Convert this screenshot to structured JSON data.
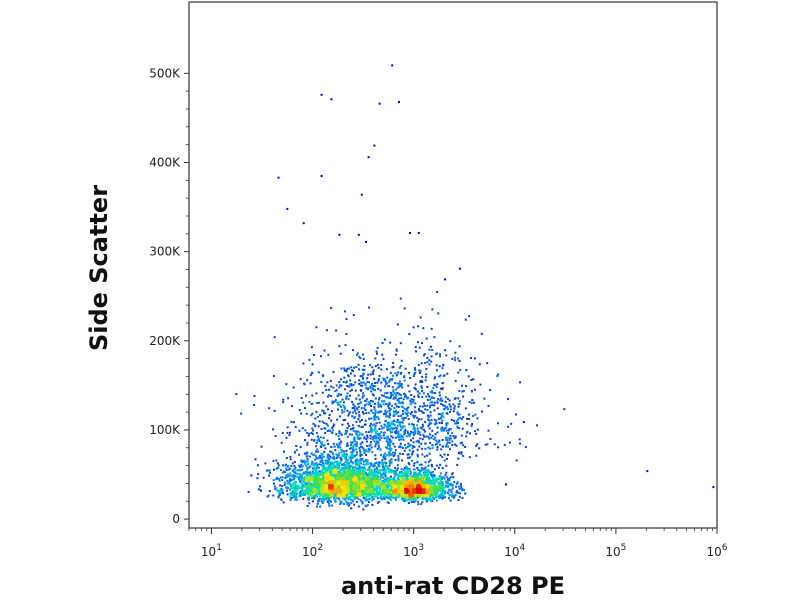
{
  "chart_data": {
    "type": "scatter",
    "title": "",
    "xlabel": "anti-rat CD28 PE",
    "ylabel": "Side Scatter",
    "x_scale": "log",
    "xlim": [
      6,
      1000000
    ],
    "ylim": [
      -10000,
      580000
    ],
    "x_ticks": [
      {
        "value": 10,
        "base": "10",
        "exp": "1"
      },
      {
        "value": 100,
        "base": "10",
        "exp": "2"
      },
      {
        "value": 1000,
        "base": "10",
        "exp": "3"
      },
      {
        "value": 10000,
        "base": "10",
        "exp": "4"
      },
      {
        "value": 100000,
        "base": "10",
        "exp": "5"
      },
      {
        "value": 1000000,
        "base": "10",
        "exp": "6"
      }
    ],
    "y_ticks": [
      {
        "value": 0,
        "label": "0"
      },
      {
        "value": 100000,
        "label": "100K"
      },
      {
        "value": 200000,
        "label": "200K"
      },
      {
        "value": 300000,
        "label": "300K"
      },
      {
        "value": 400000,
        "label": "400K"
      },
      {
        "value": 500000,
        "label": "500K"
      }
    ],
    "populations": [
      {
        "x": 180,
        "y": 35000,
        "sx_log": 0.28,
        "sy": 18000,
        "n": 2600
      },
      {
        "x": 1000,
        "y": 32000,
        "sx_log": 0.18,
        "sy": 12000,
        "n": 1500
      },
      {
        "x": 600,
        "y": 100000,
        "sx_log": 0.45,
        "sy": 45000,
        "n": 1400
      }
    ],
    "outliers": [
      {
        "x": 600,
        "y": 510000
      },
      {
        "x": 120,
        "y": 477000
      },
      {
        "x": 150,
        "y": 472000
      },
      {
        "x": 450,
        "y": 467000
      },
      {
        "x": 700,
        "y": 469000
      },
      {
        "x": 400,
        "y": 420000
      },
      {
        "x": 350,
        "y": 407000
      },
      {
        "x": 45,
        "y": 384000
      },
      {
        "x": 120,
        "y": 386000
      },
      {
        "x": 55,
        "y": 349000
      },
      {
        "x": 80,
        "y": 333000
      },
      {
        "x": 300,
        "y": 365000
      },
      {
        "x": 180,
        "y": 320000
      },
      {
        "x": 280,
        "y": 320000
      },
      {
        "x": 900,
        "y": 322000
      },
      {
        "x": 1100,
        "y": 322000
      },
      {
        "x": 330,
        "y": 312000
      },
      {
        "x": 200000,
        "y": 55000
      },
      {
        "x": 900000,
        "y": 37000
      },
      {
        "x": 8000,
        "y": 40000
      },
      {
        "x": 12000,
        "y": 110000
      },
      {
        "x": 2000,
        "y": 270000
      },
      {
        "x": 2800,
        "y": 282000
      }
    ]
  }
}
